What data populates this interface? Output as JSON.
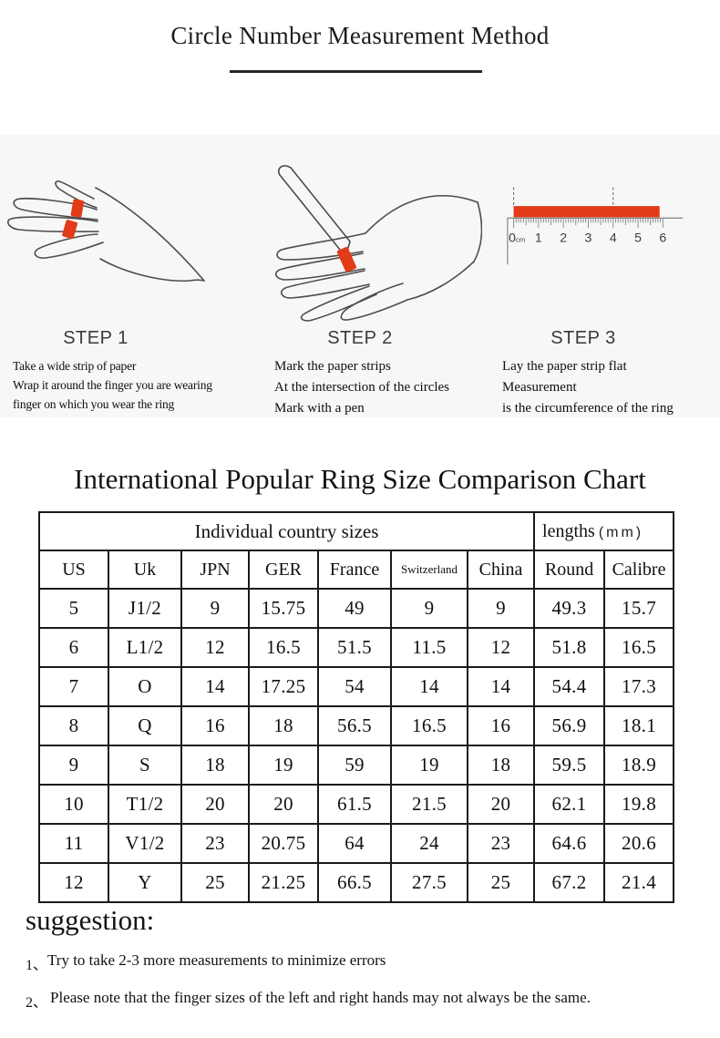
{
  "header": {
    "title": "Circle Number Measurement Method"
  },
  "steps": [
    {
      "label": "STEP 1",
      "lines": [
        "Take a wide strip of paper",
        "Wrap it around the finger you are wearing",
        "finger on which you wear the ring"
      ]
    },
    {
      "label": "STEP 2",
      "lines": [
        "Mark the paper strips",
        "At the intersection of the circles",
        "Mark with a pen"
      ]
    },
    {
      "label": "STEP 3",
      "lines": [
        "Lay the paper strip flat",
        "Measurement",
        "is the circumference of the ring"
      ]
    }
  ],
  "ruler": {
    "labels": [
      "0",
      "1",
      "2",
      "3",
      "4",
      "5",
      "6"
    ],
    "unit": "cm",
    "bar_color": "#e23b17"
  },
  "chart_title": "International Popular Ring Size Comparison Chart",
  "table": {
    "group_left": "Individual country sizes",
    "group_right_label": "lengths",
    "group_right_unit": "(mm)"
  },
  "chart_data": {
    "type": "table",
    "title": "International Popular Ring Size Comparison Chart",
    "group_headers": [
      {
        "label": "Individual country sizes",
        "colspan": 7
      },
      {
        "label": "lengths (mm)",
        "colspan": 2
      }
    ],
    "columns": [
      "US",
      "Uk",
      "JPN",
      "GER",
      "France",
      "Switzerland",
      "China",
      "Round",
      "Calibre"
    ],
    "rows": [
      [
        "5",
        "J1/2",
        "9",
        "15.75",
        "49",
        "9",
        "9",
        "49.3",
        "15.7"
      ],
      [
        "6",
        "L1/2",
        "12",
        "16.5",
        "51.5",
        "11.5",
        "12",
        "51.8",
        "16.5"
      ],
      [
        "7",
        "O",
        "14",
        "17.25",
        "54",
        "14",
        "14",
        "54.4",
        "17.3"
      ],
      [
        "8",
        "Q",
        "16",
        "18",
        "56.5",
        "16.5",
        "16",
        "56.9",
        "18.1"
      ],
      [
        "9",
        "S",
        "18",
        "19",
        "59",
        "19",
        "18",
        "59.5",
        "18.9"
      ],
      [
        "10",
        "T1/2",
        "20",
        "20",
        "61.5",
        "21.5",
        "20",
        "62.1",
        "19.8"
      ],
      [
        "11",
        "V1/2",
        "23",
        "20.75",
        "64",
        "24",
        "23",
        "64.6",
        "20.6"
      ],
      [
        "12",
        "Y",
        "25",
        "21.25",
        "66.5",
        "27.5",
        "25",
        "67.2",
        "21.4"
      ]
    ]
  },
  "suggestion": {
    "title": "suggestion:",
    "items": [
      {
        "num": "1、",
        "text": "Try to take 2-3 more measurements to minimize errors"
      },
      {
        "num": "2、",
        "text": "Please note that the finger sizes of the left and right hands may not always be the same."
      }
    ]
  },
  "colors": {
    "accent_red": "#e23b17",
    "steps_bg": "#f7f7f7"
  }
}
